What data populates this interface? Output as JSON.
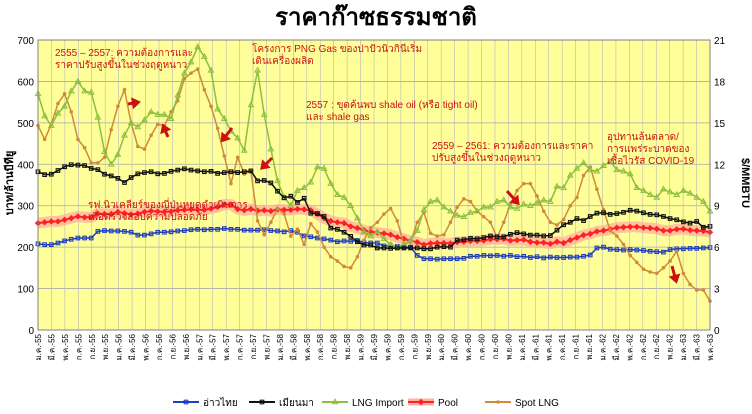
{
  "chart_data": {
    "type": "line",
    "title": "ราคาก๊าซธรรมชาติ",
    "ylabel_left": "บาท/ล้านบีทียู",
    "ylabel_right": "$/MMBTU",
    "ylim_left": [
      0,
      700
    ],
    "ylim_right": [
      0,
      21
    ],
    "yticks_left": [
      "0",
      "100",
      "200",
      "300",
      "400",
      "500",
      "600",
      "700"
    ],
    "yticks_right": [
      "0",
      "3",
      "6",
      "9",
      "12",
      "15",
      "18",
      "21"
    ],
    "x_labels": [
      "ม.ค.-55",
      "มี.ค.-55",
      "พ.ค.-55",
      "ก.ค.-55",
      "ก.ย.-55",
      "พ.ย.-55",
      "ม.ค.-56",
      "มี.ค.-56",
      "พ.ค.-56",
      "ก.ค.-56",
      "ก.ย.-56",
      "พ.ย.-56",
      "ม.ค.-57",
      "มี.ค.-57",
      "พ.ค.-57",
      "ก.ค.-57",
      "ก.ย.-57",
      "พ.ย.-57",
      "ม.ค.-58",
      "มี.ค.-58",
      "พ.ค.-58",
      "ก.ค.-58",
      "ก.ย.-58",
      "พ.ย.-58",
      "ม.ค.-59",
      "มี.ค.-59",
      "พ.ค.-59",
      "ก.ค.-59",
      "ก.ย.-59",
      "พ.ย.-59",
      "ม.ค.-60",
      "มี.ค.-60",
      "พ.ค.-60",
      "ก.ค.-60",
      "ก.ย.-60",
      "พ.ย.-60",
      "ม.ค.-61",
      "มี.ค.-61",
      "พ.ค.-61",
      "ก.ค.-61",
      "ก.ย.-61",
      "พ.ย.-61",
      "ม.ค.-62",
      "มี.ค.-62",
      "พ.ค.-62",
      "ก.ค.-62",
      "ก.ย.-62",
      "พ.ย.-62",
      "ม.ค.-63",
      "มี.ค.-63",
      "พ.ค.-63"
    ],
    "grid": true,
    "legend_position": "bottom",
    "series": [
      {
        "name": "อ่าวไทย",
        "axis": "left",
        "color": "#1f3fbf",
        "marker": "square",
        "values": [
          208,
          206,
          206,
          210,
          215,
          219,
          222,
          222,
          222,
          238,
          240,
          239,
          239,
          238,
          236,
          229,
          229,
          232,
          236,
          236,
          237,
          239,
          240,
          242,
          243,
          242,
          243,
          243,
          245,
          243,
          243,
          241,
          241,
          241,
          242,
          240,
          239,
          237,
          240,
          236,
          227,
          225,
          222,
          220,
          217,
          213,
          215,
          214,
          216,
          211,
          210,
          210,
          203,
          203,
          202,
          200,
          200,
          180,
          172,
          172,
          171,
          172,
          172,
          172,
          173,
          178,
          178,
          180,
          179,
          180,
          178,
          180,
          177,
          178,
          175,
          177,
          174,
          176,
          175,
          175,
          176,
          176,
          178,
          181,
          198,
          200,
          195,
          194,
          193,
          194,
          193,
          192,
          190,
          189,
          188,
          194,
          196,
          196,
          197,
          197,
          198,
          199
        ]
      },
      {
        "name": "เมียนมา",
        "axis": "left",
        "color": "#111111",
        "marker": "square",
        "values": [
          382,
          375,
          376,
          385,
          394,
          399,
          398,
          397,
          390,
          387,
          376,
          372,
          366,
          356,
          368,
          377,
          380,
          382,
          377,
          378,
          383,
          386,
          389,
          386,
          384,
          382,
          383,
          378,
          380,
          382,
          380,
          382,
          384,
          360,
          361,
          355,
          335,
          319,
          323,
          308,
          318,
          282,
          281,
          274,
          246,
          243,
          236,
          226,
          213,
          205,
          205,
          198,
          198,
          197,
          198,
          198,
          198,
          198,
          196,
          196,
          200,
          201,
          200,
          217,
          218,
          221,
          220,
          223,
          227,
          225,
          225,
          231,
          235,
          232,
          229,
          229,
          227,
          228,
          241,
          254,
          260,
          269,
          264,
          274,
          282,
          283,
          279,
          281,
          284,
          289,
          287,
          283,
          279,
          278,
          274,
          269,
          266,
          261,
          258,
          262,
          248,
          250
        ]
      },
      {
        "name": "LNG Import",
        "axis": "right",
        "color": "#8cbf3f",
        "marker": "triangle",
        "values": [
          17.1,
          15.5,
          14.8,
          15.7,
          16.2,
          17.3,
          18.0,
          17.3,
          17.2,
          15.4,
          12.9,
          12.0,
          12.7,
          14.1,
          15.0,
          14.7,
          15.2,
          15.8,
          15.6,
          15.6,
          15.3,
          17.0,
          18.6,
          19.4,
          20.5,
          19.8,
          18.8,
          16.0,
          15.3,
          14.4,
          13.9,
          13.0,
          16.3,
          18.8,
          15.6,
          13.1,
          10.8,
          9.6,
          9.0,
          10.1,
          10.3,
          10.7,
          11.8,
          11.7,
          10.6,
          9.8,
          9.6,
          9.0,
          8.1,
          7.1,
          6.8,
          7.1,
          6.6,
          6.2,
          6.0,
          6.2,
          6.5,
          7.2,
          8.7,
          9.3,
          9.4,
          8.9,
          8.6,
          8.3,
          8.2,
          8.5,
          8.6,
          8.9,
          8.9,
          9.3,
          9.4,
          8.9,
          8.8,
          9.1,
          9.0,
          9.2,
          9.4,
          9.3,
          10.4,
          10.3,
          11.2,
          11.7,
          12.1,
          11.6,
          11.5,
          11.9,
          12.2,
          11.6,
          11.5,
          11.3,
          10.3,
          10.1,
          9.8,
          9.6,
          10.2,
          10.0,
          9.8,
          10.1,
          9.9,
          9.6,
          9.3,
          8.6
        ]
      },
      {
        "name": "Pool",
        "axis": "left",
        "color": "#ff2020",
        "marker": "diamond",
        "values": [
          258,
          260,
          262,
          262,
          266,
          270,
          274,
          272,
          272,
          281,
          280,
          280,
          285,
          282,
          279,
          281,
          285,
          287,
          286,
          285,
          286,
          289,
          290,
          291,
          290,
          290,
          293,
          297,
          303,
          303,
          292,
          289,
          292,
          288,
          289,
          287,
          291,
          290,
          290,
          292,
          291,
          289,
          280,
          270,
          263,
          260,
          258,
          250,
          246,
          241,
          237,
          235,
          233,
          230,
          224,
          220,
          215,
          212,
          206,
          209,
          210,
          210,
          209,
          212,
          213,
          215,
          215,
          216,
          219,
          219,
          220,
          216,
          217,
          218,
          213,
          211,
          211,
          208,
          213,
          210,
          217,
          223,
          229,
          232,
          238,
          240,
          243,
          247,
          248,
          249,
          249,
          247,
          246,
          244,
          240,
          240,
          243,
          244,
          241,
          240,
          239,
          236
        ]
      },
      {
        "name": "Spot LNG",
        "axis": "right",
        "color": "#d08a3a",
        "marker": "circle",
        "values": [
          14.8,
          13.8,
          14.9,
          16.4,
          17.1,
          15.8,
          13.8,
          13.2,
          12.1,
          12.1,
          12.5,
          14.5,
          16.2,
          17.4,
          15.0,
          13.3,
          13.1,
          14.1,
          14.9,
          14.8,
          15.8,
          16.6,
          18.2,
          18.6,
          18.9,
          17.4,
          16.2,
          14.6,
          12.6,
          10.6,
          12.5,
          11.3,
          11.5,
          7.9,
          6.9,
          7.8,
          8.8,
          8.4,
          6.8,
          7.3,
          6.2,
          7.7,
          7.1,
          6.0,
          5.3,
          5.0,
          4.6,
          4.5,
          5.3,
          6.5,
          7.4,
          7.8,
          8.4,
          8.8,
          7.9,
          6.2,
          6.4,
          7.8,
          8.5,
          7.0,
          6.8,
          6.9,
          7.8,
          8.9,
          9.5,
          9.3,
          8.6,
          8.2,
          7.8,
          6.7,
          7.8,
          9.1,
          10.1,
          10.6,
          10.6,
          9.7,
          8.6,
          7.8,
          7.6,
          8.0,
          9.0,
          9.6,
          11.2,
          11.8,
          10.2,
          8.7,
          7.2,
          6.8,
          6.2,
          5.4,
          4.9,
          4.4,
          4.2,
          4.1,
          4.5,
          5.0,
          5.7,
          4.1,
          3.3,
          2.9,
          2.9,
          2.1
        ]
      }
    ],
    "annotations": [
      {
        "text": "2555 – 2557: ความต้องการและ\nราคาปรับสูงขึ้นในช่วงฤดูหนาว"
      },
      {
        "text": "โครงการ PNG Gas ของปาปัวนิวกินีเริ่ม\nเดินเครื่องผลิต"
      },
      {
        "text": "2557 : ขุดค้นพบ shale oil (หรือ tight oil)\nและ shale gas"
      },
      {
        "text": "2559 – 2561: ความต้องการและราคา\nปรับสูงขึ้นในช่วงฤดูหนาว"
      },
      {
        "text": "อุปทานล้นตลาด/\nการแพร่ระบาดของ\nเชื้อไวรัส COVID-19"
      },
      {
        "text": "รฟ.นิวเคลียร์ของญี่ปุ่นหยุดดำเนินการ\nเพื่อตรวจสอบความปลอดภัย"
      }
    ]
  }
}
